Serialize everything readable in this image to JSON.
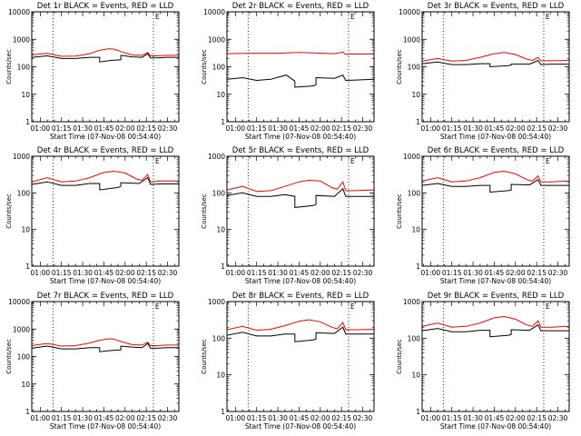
{
  "chart_data": [
    {
      "type": "line",
      "title": "Det 1r BLACK = Events, RED = LLD",
      "xlabel": "Start Time (07-Nov-08 00:54:40)",
      "ylabel": "Counts/sec",
      "yscale": "log",
      "ylim": [
        1,
        10000
      ],
      "yticks": [
        "1",
        "10",
        "100",
        "1000",
        "10000"
      ],
      "xlim": [
        "00:54",
        "02:38"
      ],
      "xticks": [
        "01:00",
        "01:15",
        "01:30",
        "01:45",
        "02:00",
        "02:15",
        "02:30"
      ],
      "markers": [
        {
          "x": "01:09",
          "label": ""
        },
        {
          "x": "02:20",
          "label": "E"
        }
      ],
      "series": [
        {
          "color": "#ff0000",
          "x": [
            "00:54",
            "01:05",
            "01:15",
            "01:25",
            "01:35",
            "01:42",
            "01:48",
            "01:52",
            "01:57",
            "02:05",
            "02:12",
            "02:16",
            "02:18",
            "02:22",
            "02:30",
            "02:38"
          ],
          "y": [
            270,
            310,
            240,
            245,
            300,
            400,
            450,
            440,
            360,
            270,
            260,
            330,
            250,
            250,
            260,
            260
          ]
        },
        {
          "color": "#000000",
          "x": [
            "00:54",
            "01:05",
            "01:15",
            "01:25",
            "01:35",
            "01:42",
            "01:42",
            "01:50",
            "01:57",
            "01:57",
            "02:05",
            "02:12",
            "02:16",
            "02:18",
            "02:22",
            "02:30",
            "02:38"
          ],
          "y": [
            220,
            250,
            200,
            200,
            220,
            220,
            150,
            170,
            180,
            260,
            230,
            220,
            300,
            210,
            210,
            220,
            220
          ]
        }
      ]
    },
    {
      "type": "line",
      "title": "Det 2r BLACK = Events, RED = LLD",
      "xlabel": "Start Time (07-Nov-08 00:54:40)",
      "ylabel": "Counts/sec",
      "yscale": "log",
      "ylim": [
        1,
        10000
      ],
      "yticks": [
        "1",
        "10",
        "100",
        "1000",
        "10000"
      ],
      "xlim": [
        "00:54",
        "02:38"
      ],
      "xticks": [
        "01:00",
        "01:15",
        "01:30",
        "01:45",
        "02:00",
        "02:15",
        "02:30"
      ],
      "markers": [
        {
          "x": "01:09",
          "label": ""
        },
        {
          "x": "02:20",
          "label": "E"
        }
      ],
      "series": [
        {
          "color": "#ff0000",
          "x": [
            "00:54",
            "01:10",
            "01:30",
            "01:45",
            "01:55",
            "02:10",
            "02:16",
            "02:18",
            "02:22",
            "02:38"
          ],
          "y": [
            300,
            310,
            310,
            330,
            320,
            300,
            340,
            280,
            290,
            290
          ]
        },
        {
          "color": "#000000",
          "x": [
            "00:54",
            "01:05",
            "01:15",
            "01:25",
            "01:36",
            "01:42",
            "01:42",
            "01:55",
            "01:57",
            "01:57",
            "02:10",
            "02:16",
            "02:18",
            "02:25",
            "02:38"
          ],
          "y": [
            35,
            40,
            32,
            35,
            50,
            30,
            18,
            20,
            22,
            40,
            38,
            50,
            32,
            33,
            35
          ]
        }
      ]
    },
    {
      "type": "line",
      "title": "Det 3r BLACK = Events, RED = LLD",
      "xlabel": "Start Time (07-Nov-08 00:54:40)",
      "ylabel": "Counts/sec",
      "yscale": "log",
      "ylim": [
        1,
        10000
      ],
      "yticks": [
        "1",
        "10",
        "100",
        "1000",
        "10000"
      ],
      "xlim": [
        "00:54",
        "02:38"
      ],
      "xticks": [
        "01:00",
        "01:15",
        "01:30",
        "01:45",
        "02:00",
        "02:15",
        "02:30"
      ],
      "markers": [
        {
          "x": "01:09",
          "label": ""
        },
        {
          "x": "02:20",
          "label": "E"
        }
      ],
      "series": [
        {
          "color": "#ff0000",
          "x": [
            "00:54",
            "01:05",
            "01:15",
            "01:25",
            "01:35",
            "01:45",
            "01:52",
            "02:00",
            "02:08",
            "02:12",
            "02:16",
            "02:18",
            "02:25",
            "02:38"
          ],
          "y": [
            160,
            200,
            160,
            170,
            220,
            300,
            330,
            280,
            190,
            170,
            220,
            165,
            165,
            170
          ]
        },
        {
          "color": "#000000",
          "x": [
            "00:54",
            "01:05",
            "01:15",
            "01:25",
            "01:35",
            "01:42",
            "01:42",
            "01:55",
            "01:57",
            "01:57",
            "02:10",
            "02:16",
            "02:18",
            "02:25",
            "02:38"
          ],
          "y": [
            130,
            150,
            120,
            120,
            130,
            130,
            100,
            110,
            115,
            125,
            125,
            170,
            120,
            125,
            125
          ]
        }
      ]
    },
    {
      "type": "line",
      "title": "Det 4r BLACK = Events, RED = LLD",
      "xlabel": "Start Time (07-Nov-08 00:54:40)",
      "ylabel": "Counts/sec",
      "yscale": "log",
      "ylim": [
        1,
        1000
      ],
      "yticks": [
        "1",
        "10",
        "100",
        "1000"
      ],
      "xlim": [
        "00:54",
        "02:38"
      ],
      "xticks": [
        "01:00",
        "01:15",
        "01:30",
        "01:45",
        "02:00",
        "02:15",
        "02:30"
      ],
      "markers": [
        {
          "x": "01:09",
          "label": ""
        },
        {
          "x": "02:20",
          "label": "E"
        }
      ],
      "series": [
        {
          "color": "#ff0000",
          "x": [
            "00:54",
            "01:05",
            "01:15",
            "01:25",
            "01:35",
            "01:45",
            "01:52",
            "02:00",
            "02:08",
            "02:12",
            "02:16",
            "02:18",
            "02:25",
            "02:38"
          ],
          "y": [
            200,
            260,
            200,
            210,
            260,
            360,
            390,
            350,
            240,
            220,
            320,
            200,
            210,
            210
          ]
        },
        {
          "color": "#000000",
          "x": [
            "00:54",
            "01:05",
            "01:15",
            "01:25",
            "01:35",
            "01:42",
            "01:42",
            "01:55",
            "01:57",
            "01:57",
            "02:10",
            "02:16",
            "02:18",
            "02:25",
            "02:38"
          ],
          "y": [
            170,
            200,
            160,
            160,
            180,
            180,
            120,
            140,
            150,
            190,
            180,
            260,
            170,
            175,
            175
          ]
        }
      ]
    },
    {
      "type": "line",
      "title": "Det 5r BLACK = Events, RED = LLD",
      "xlabel": "Start Time (07-Nov-08 00:54:40)",
      "ylabel": "Counts/sec",
      "yscale": "log",
      "ylim": [
        1,
        1000
      ],
      "yticks": [
        "1",
        "10",
        "100",
        "1000"
      ],
      "xlim": [
        "00:54",
        "02:38"
      ],
      "xticks": [
        "01:00",
        "01:15",
        "01:30",
        "01:45",
        "02:00",
        "02:15",
        "02:30"
      ],
      "markers": [
        {
          "x": "01:09",
          "label": ""
        },
        {
          "x": "02:20",
          "label": "E"
        }
      ],
      "series": [
        {
          "color": "#ff0000",
          "x": [
            "00:54",
            "01:05",
            "01:15",
            "01:25",
            "01:35",
            "01:45",
            "01:52",
            "02:00",
            "02:08",
            "02:12",
            "02:16",
            "02:18",
            "02:25",
            "02:38"
          ],
          "y": [
            120,
            150,
            110,
            115,
            150,
            200,
            220,
            210,
            140,
            125,
            200,
            115,
            115,
            120
          ]
        },
        {
          "color": "#000000",
          "x": [
            "00:54",
            "01:05",
            "01:15",
            "01:25",
            "01:35",
            "01:42",
            "01:42",
            "01:55",
            "01:57",
            "01:57",
            "02:10",
            "02:16",
            "02:18",
            "02:25",
            "02:38"
          ],
          "y": [
            85,
            100,
            80,
            80,
            90,
            80,
            40,
            45,
            48,
            85,
            80,
            130,
            80,
            80,
            80
          ]
        }
      ]
    },
    {
      "type": "line",
      "title": "Det 6r BLACK = Events, RED = LLD",
      "xlabel": "Start Time (07-Nov-08 00:54:40)",
      "ylabel": "Counts/sec",
      "yscale": "log",
      "ylim": [
        1,
        1000
      ],
      "yticks": [
        "1",
        "10",
        "100",
        "1000"
      ],
      "xlim": [
        "00:54",
        "02:38"
      ],
      "xticks": [
        "01:00",
        "01:15",
        "01:30",
        "01:45",
        "02:00",
        "02:15",
        "02:30"
      ],
      "markers": [
        {
          "x": "01:09",
          "label": ""
        },
        {
          "x": "02:20",
          "label": "E"
        }
      ],
      "series": [
        {
          "color": "#ff0000",
          "x": [
            "00:54",
            "01:05",
            "01:15",
            "01:25",
            "01:35",
            "01:45",
            "01:52",
            "02:00",
            "02:08",
            "02:12",
            "02:16",
            "02:18",
            "02:25",
            "02:38"
          ],
          "y": [
            210,
            260,
            200,
            210,
            260,
            360,
            390,
            330,
            230,
            210,
            290,
            200,
            200,
            210
          ]
        },
        {
          "color": "#000000",
          "x": [
            "00:54",
            "01:05",
            "01:15",
            "01:25",
            "01:35",
            "01:42",
            "01:42",
            "01:55",
            "01:57",
            "01:57",
            "02:10",
            "02:16",
            "02:18",
            "02:25",
            "02:38"
          ],
          "y": [
            160,
            180,
            150,
            150,
            160,
            160,
            105,
            115,
            120,
            170,
            165,
            230,
            160,
            160,
            160
          ]
        }
      ]
    },
    {
      "type": "line",
      "title": "Det 7r BLACK = Events, RED = LLD",
      "xlabel": "Start Time (07-Nov-08 00:54:40)",
      "ylabel": "Counts/sec",
      "yscale": "log",
      "ylim": [
        1,
        10000
      ],
      "yticks": [
        "1",
        "10",
        "100",
        "1000",
        "10000"
      ],
      "xlim": [
        "00:54",
        "02:38"
      ],
      "xticks": [
        "01:00",
        "01:15",
        "01:30",
        "01:45",
        "02:00",
        "02:15",
        "02:30"
      ],
      "markers": [
        {
          "x": "01:09",
          "label": ""
        },
        {
          "x": "02:20",
          "label": "E"
        }
      ],
      "series": [
        {
          "color": "#ff0000",
          "x": [
            "00:54",
            "01:05",
            "01:15",
            "01:25",
            "01:35",
            "01:42",
            "01:48",
            "01:52",
            "01:57",
            "02:05",
            "02:12",
            "02:16",
            "02:18",
            "02:22",
            "02:30",
            "02:38"
          ],
          "y": [
            250,
            300,
            240,
            250,
            310,
            390,
            440,
            430,
            350,
            270,
            260,
            330,
            250,
            250,
            260,
            260
          ]
        },
        {
          "color": "#000000",
          "x": [
            "00:54",
            "01:05",
            "01:15",
            "01:25",
            "01:35",
            "01:42",
            "01:42",
            "01:50",
            "01:57",
            "01:57",
            "02:05",
            "02:12",
            "02:16",
            "02:18",
            "02:22",
            "02:30",
            "02:38"
          ],
          "y": [
            200,
            240,
            190,
            190,
            210,
            210,
            150,
            165,
            175,
            240,
            220,
            210,
            300,
            200,
            200,
            210,
            210
          ]
        }
      ]
    },
    {
      "type": "line",
      "title": "Det 8r BLACK = Events, RED = LLD",
      "xlabel": "Start Time (07-Nov-08 00:54:40)",
      "ylabel": "Counts/sec",
      "yscale": "log",
      "ylim": [
        1,
        1000
      ],
      "yticks": [
        "1",
        "10",
        "100",
        "1000"
      ],
      "xlim": [
        "00:54",
        "02:38"
      ],
      "xticks": [
        "01:00",
        "01:15",
        "01:30",
        "01:45",
        "02:00",
        "02:15",
        "02:30"
      ],
      "markers": [
        {
          "x": "01:09",
          "label": ""
        },
        {
          "x": "02:20",
          "label": "E"
        }
      ],
      "series": [
        {
          "color": "#ff0000",
          "x": [
            "00:54",
            "01:05",
            "01:15",
            "01:25",
            "01:35",
            "01:45",
            "01:52",
            "02:00",
            "02:08",
            "02:12",
            "02:16",
            "02:18",
            "02:25",
            "02:38"
          ],
          "y": [
            170,
            210,
            165,
            175,
            220,
            290,
            320,
            280,
            200,
            180,
            270,
            170,
            170,
            175
          ]
        },
        {
          "color": "#000000",
          "x": [
            "00:54",
            "01:05",
            "01:15",
            "01:25",
            "01:35",
            "01:42",
            "01:42",
            "01:55",
            "01:57",
            "01:57",
            "02:10",
            "02:16",
            "02:18",
            "02:25",
            "02:38"
          ],
          "y": [
            120,
            145,
            115,
            115,
            130,
            130,
            80,
            90,
            95,
            140,
            135,
            200,
            130,
            130,
            130
          ]
        }
      ]
    },
    {
      "type": "line",
      "title": "Det 9r BLACK = Events, RED = LLD",
      "xlabel": "Start Time (07-Nov-08 00:54:40)",
      "ylabel": "Counts/sec",
      "yscale": "log",
      "ylim": [
        1,
        1000
      ],
      "yticks": [
        "1",
        "10",
        "100",
        "1000"
      ],
      "xlim": [
        "00:54",
        "02:38"
      ],
      "xticks": [
        "01:00",
        "01:15",
        "01:30",
        "01:45",
        "02:00",
        "02:15",
        "02:30"
      ],
      "markers": [
        {
          "x": "01:09",
          "label": ""
        },
        {
          "x": "02:20",
          "label": "E"
        }
      ],
      "series": [
        {
          "color": "#ff0000",
          "x": [
            "00:54",
            "01:05",
            "01:15",
            "01:25",
            "01:35",
            "01:45",
            "01:52",
            "02:00",
            "02:08",
            "02:12",
            "02:16",
            "02:18",
            "02:25",
            "02:38"
          ],
          "y": [
            210,
            260,
            200,
            210,
            260,
            360,
            390,
            330,
            230,
            210,
            300,
            200,
            200,
            210
          ]
        },
        {
          "color": "#000000",
          "x": [
            "00:54",
            "01:05",
            "01:15",
            "01:25",
            "01:35",
            "01:42",
            "01:42",
            "01:55",
            "01:57",
            "01:57",
            "02:10",
            "02:16",
            "02:18",
            "02:25",
            "02:38"
          ],
          "y": [
            160,
            185,
            150,
            150,
            165,
            165,
            110,
            120,
            125,
            170,
            165,
            230,
            160,
            160,
            160
          ]
        }
      ]
    }
  ]
}
